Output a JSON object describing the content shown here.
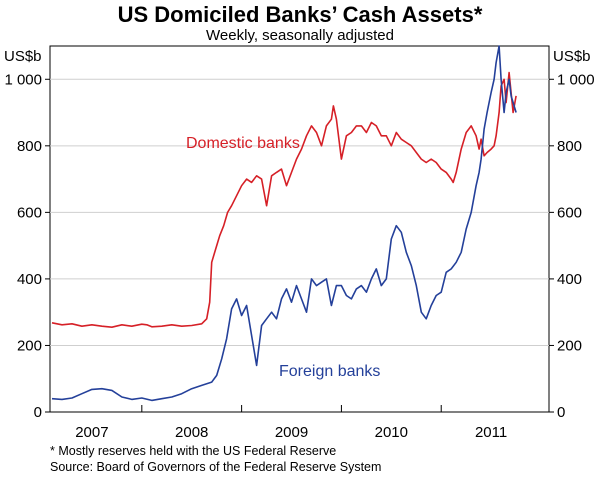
{
  "chart_data": {
    "type": "line",
    "title": "US Domiciled Banks’ Cash Assets*",
    "subtitle": "Weekly, seasonally adjusted",
    "y_unit_left": "US$b",
    "y_unit_right": "US$b",
    "ylim": [
      0,
      1100
    ],
    "yticks": [
      0,
      200,
      400,
      600,
      800,
      1000
    ],
    "ytick_labels": [
      "0",
      "200",
      "400",
      "600",
      "800",
      "1 000"
    ],
    "xlim": [
      2006.58,
      2011.58
    ],
    "year_labels": [
      "2007",
      "2008",
      "2009",
      "2010",
      "2011"
    ],
    "year_label_x": [
      2007,
      2008,
      2009,
      2010,
      2011
    ],
    "year_dividers": [
      2007.5,
      2008.5,
      2009.5,
      2010.5
    ],
    "grid": true,
    "series": [
      {
        "name": "Domestic banks",
        "color": "#d62027",
        "x": [
          2006.6,
          2006.7,
          2006.8,
          2006.9,
          2007.0,
          2007.1,
          2007.2,
          2007.3,
          2007.4,
          2007.5,
          2007.55,
          2007.6,
          2007.7,
          2007.8,
          2007.9,
          2008.0,
          2008.1,
          2008.15,
          2008.18,
          2008.2,
          2008.25,
          2008.28,
          2008.32,
          2008.36,
          2008.4,
          2008.45,
          2008.5,
          2008.55,
          2008.6,
          2008.65,
          2008.7,
          2008.75,
          2008.8,
          2008.85,
          2008.9,
          2008.95,
          2009.0,
          2009.05,
          2009.1,
          2009.15,
          2009.2,
          2009.25,
          2009.3,
          2009.35,
          2009.4,
          2009.42,
          2009.45,
          2009.5,
          2009.55,
          2009.6,
          2009.65,
          2009.7,
          2009.75,
          2009.8,
          2009.85,
          2009.9,
          2009.95,
          2010.0,
          2010.05,
          2010.1,
          2010.15,
          2010.2,
          2010.25,
          2010.3,
          2010.35,
          2010.4,
          2010.45,
          2010.5,
          2010.55,
          2010.6,
          2010.62,
          2010.65,
          2010.7,
          2010.75,
          2010.8,
          2010.85,
          2010.88,
          2010.9,
          2010.93,
          2010.96,
          2011.0,
          2011.03,
          2011.05,
          2011.08,
          2011.1,
          2011.13,
          2011.15,
          2011.18,
          2011.2,
          2011.22,
          2011.25
        ],
        "values": [
          268,
          262,
          265,
          258,
          262,
          258,
          255,
          262,
          258,
          264,
          262,
          256,
          258,
          262,
          258,
          260,
          265,
          280,
          330,
          450,
          500,
          530,
          560,
          600,
          620,
          650,
          680,
          700,
          690,
          710,
          700,
          620,
          710,
          720,
          730,
          680,
          720,
          760,
          790,
          830,
          860,
          840,
          800,
          860,
          880,
          920,
          880,
          760,
          830,
          840,
          860,
          860,
          840,
          870,
          860,
          830,
          830,
          800,
          840,
          820,
          810,
          800,
          780,
          760,
          750,
          760,
          750,
          730,
          720,
          700,
          690,
          720,
          790,
          840,
          860,
          830,
          790,
          820,
          770,
          780,
          790,
          800,
          830,
          900,
          980,
          1000,
          930,
          1020,
          960,
          900,
          950
        ]
      },
      {
        "name": "Foreign banks",
        "color": "#24409a",
        "x": [
          2006.6,
          2006.7,
          2006.8,
          2006.9,
          2007.0,
          2007.1,
          2007.2,
          2007.3,
          2007.4,
          2007.5,
          2007.6,
          2007.7,
          2007.8,
          2007.9,
          2008.0,
          2008.1,
          2008.2,
          2008.25,
          2008.3,
          2008.35,
          2008.4,
          2008.45,
          2008.5,
          2008.55,
          2008.6,
          2008.65,
          2008.7,
          2008.75,
          2008.8,
          2008.85,
          2008.9,
          2008.95,
          2009.0,
          2009.05,
          2009.1,
          2009.15,
          2009.2,
          2009.25,
          2009.3,
          2009.35,
          2009.4,
          2009.45,
          2009.5,
          2009.55,
          2009.6,
          2009.65,
          2009.7,
          2009.75,
          2009.8,
          2009.85,
          2009.9,
          2009.95,
          2010.0,
          2010.05,
          2010.1,
          2010.15,
          2010.2,
          2010.25,
          2010.3,
          2010.35,
          2010.4,
          2010.45,
          2010.5,
          2010.55,
          2010.6,
          2010.65,
          2010.7,
          2010.75,
          2010.8,
          2010.85,
          2010.88,
          2010.9,
          2010.93,
          2010.96,
          2011.0,
          2011.03,
          2011.05,
          2011.08,
          2011.1,
          2011.13,
          2011.15,
          2011.18,
          2011.2,
          2011.25
        ],
        "values": [
          40,
          38,
          42,
          55,
          68,
          70,
          65,
          45,
          38,
          42,
          35,
          40,
          45,
          55,
          70,
          80,
          90,
          110,
          160,
          220,
          310,
          340,
          290,
          320,
          230,
          140,
          260,
          280,
          300,
          280,
          340,
          370,
          330,
          380,
          340,
          300,
          400,
          380,
          390,
          400,
          320,
          380,
          380,
          350,
          340,
          370,
          380,
          360,
          400,
          430,
          380,
          400,
          520,
          560,
          540,
          480,
          440,
          380,
          300,
          280,
          320,
          350,
          360,
          420,
          430,
          450,
          480,
          550,
          600,
          680,
          720,
          760,
          850,
          900,
          960,
          1000,
          1050,
          1100,
          1000,
          900,
          960,
          1000,
          950,
          900
        ]
      }
    ],
    "annotations": [
      {
        "text": "Domestic banks",
        "color": "#d62027"
      },
      {
        "text": "Foreign banks",
        "color": "#24409a"
      }
    ],
    "footnotes": [
      "*     Mostly reserves held  with the US Federal Reserve",
      "Source: Board of Governors of the Federal Reserve System"
    ]
  }
}
